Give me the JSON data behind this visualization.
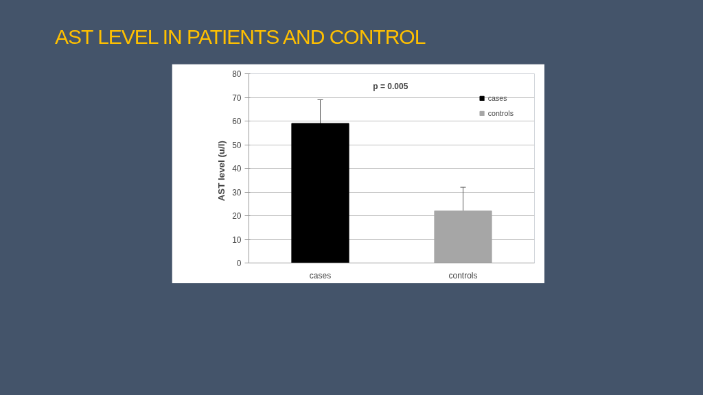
{
  "chart_data": {
    "type": "bar",
    "title": "AST LEVEL IN PATIENTS AND CONTROL",
    "ylabel": "AST  level  (u/l)",
    "categories": [
      "cases",
      "controls"
    ],
    "series": [
      {
        "name": "cases",
        "color": "#000000",
        "values": [
          59,
          null
        ],
        "errors": [
          10,
          null
        ]
      },
      {
        "name": "controls",
        "color": "#a6a6a6",
        "values": [
          null,
          22
        ],
        "errors": [
          null,
          10
        ]
      }
    ],
    "ylim": [
      0,
      80
    ],
    "yticks": [
      0,
      10,
      20,
      30,
      40,
      50,
      60,
      70,
      80
    ],
    "grid": "y",
    "legend": "top right",
    "annotations": [
      "p =  0.005"
    ]
  }
}
